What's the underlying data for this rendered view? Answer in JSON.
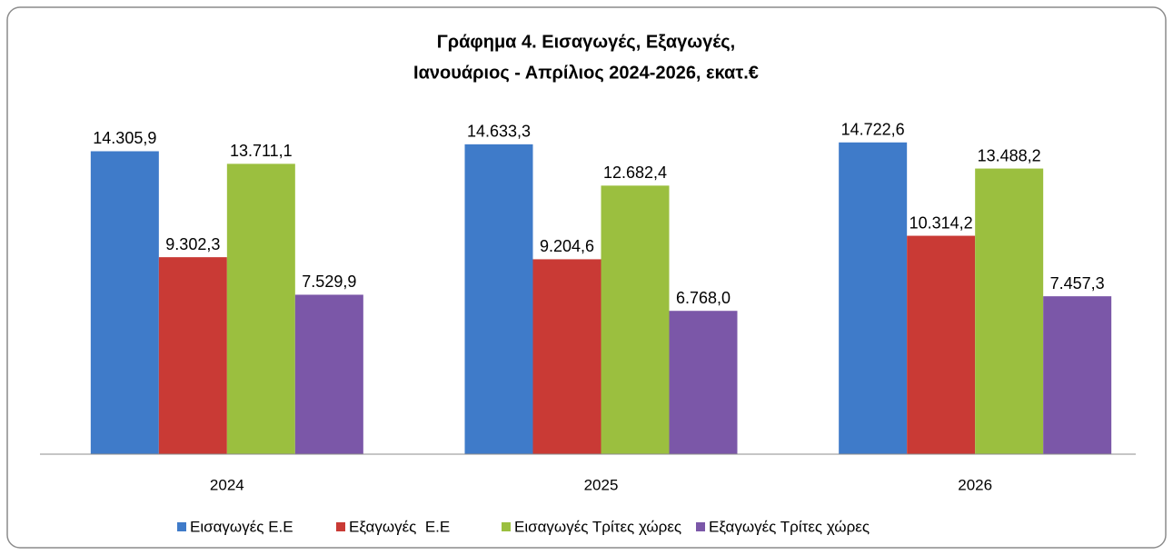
{
  "chart_data": {
    "type": "bar",
    "title": [
      "Γράφημα 4. Εισαγωγές, Εξαγωγές,",
      "Ιανουάριος - Απρίλιος 2024-2026, εκατ.€"
    ],
    "categories": [
      "2024",
      "2025",
      "2026"
    ],
    "series": [
      {
        "name": "Εισαγωγές Ε.Ε",
        "color": "#3f7bc9",
        "values": [
          14305.9,
          14633.3,
          14722.6
        ],
        "value_labels": [
          "14.305,9",
          "14.633,3",
          "14.722,6"
        ]
      },
      {
        "name": "Εξαγωγές  Ε.Ε",
        "color": "#c93a35",
        "values": [
          9302.3,
          9204.6,
          10314.2
        ],
        "value_labels": [
          "9.302,3",
          "9.204,6",
          "10.314,2"
        ]
      },
      {
        "name": "Εισαγωγές Τρίτες χώρες",
        "color": "#9bbf3f",
        "values": [
          13711.1,
          12682.4,
          13488.2
        ],
        "value_labels": [
          "13.711,1",
          "12.682,4",
          "13.488,2"
        ]
      },
      {
        "name": "Εξαγωγές Τρίτες χώρες",
        "color": "#7b57a8",
        "values": [
          7529.9,
          6768.0,
          7457.3
        ],
        "value_labels": [
          "7.529,9",
          "6.768,0",
          "7.457,3"
        ]
      }
    ],
    "ylim": [
      0,
      16000
    ],
    "legend": "bottom"
  }
}
